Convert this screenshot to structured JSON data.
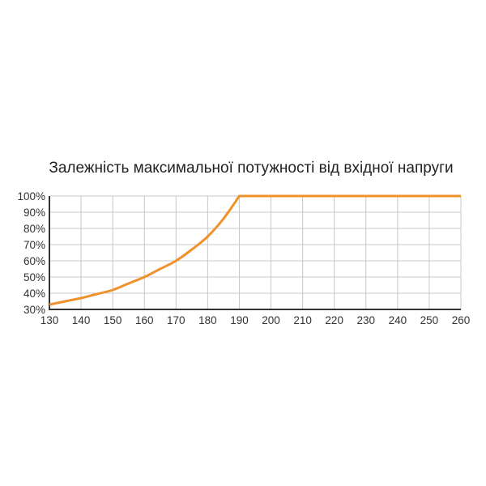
{
  "chart_data": {
    "type": "line",
    "title": "Залежність максимальної потужності від вхідної напруги",
    "xlabel": "",
    "ylabel": "",
    "xlim": [
      130,
      260
    ],
    "ylim": [
      30,
      100
    ],
    "x_ticks": [
      "130",
      "140",
      "150",
      "160",
      "170",
      "180",
      "190",
      "200",
      "210",
      "220",
      "230",
      "240",
      "250",
      "260"
    ],
    "y_ticks": [
      "30%",
      "40%",
      "50%",
      "60%",
      "70%",
      "80%",
      "90%",
      "100%"
    ],
    "grid": true,
    "series": [
      {
        "color": "#f0922b",
        "x": [
          130,
          135,
          140,
          145,
          150,
          155,
          160,
          165,
          170,
          175,
          180,
          185,
          190,
          260
        ],
        "y": [
          33,
          35,
          37,
          39.5,
          42,
          46,
          50,
          55,
          60,
          67,
          75,
          86,
          100,
          100
        ]
      }
    ]
  }
}
